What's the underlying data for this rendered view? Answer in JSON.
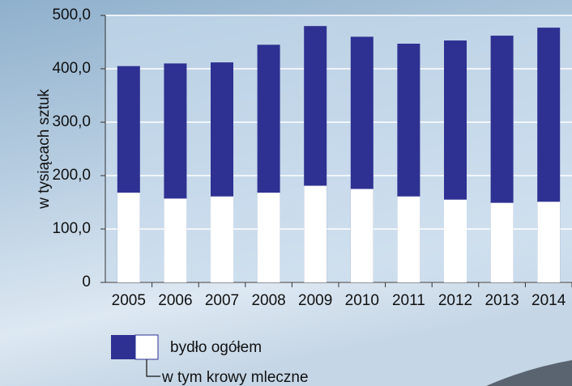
{
  "chart_data": {
    "type": "bar",
    "overlap": true,
    "categories": [
      "2005",
      "2006",
      "2007",
      "2008",
      "2009",
      "2010",
      "2011",
      "2012",
      "2013",
      "2014"
    ],
    "series": [
      {
        "name": "bydło ogółem",
        "color": "#2e3192",
        "values": [
          405,
          410,
          412,
          445,
          480,
          460,
          447,
          453,
          462,
          477
        ]
      },
      {
        "name": "w tym krowy mleczne",
        "color": "#ffffff",
        "values": [
          168,
          157,
          161,
          168,
          181,
          175,
          161,
          155,
          149,
          151
        ]
      }
    ],
    "y_label": "w tysiącach sztuk",
    "ylim": [
      0,
      500
    ],
    "yticks": [
      0,
      {
        "value": 100,
        "label": "100,0"
      },
      {
        "value": 200,
        "label": "200,0"
      },
      {
        "value": 300,
        "label": "300,0"
      },
      {
        "value": 400,
        "label": "400,0"
      },
      {
        "value": 500,
        "label": "500,0"
      }
    ],
    "grid": true
  }
}
